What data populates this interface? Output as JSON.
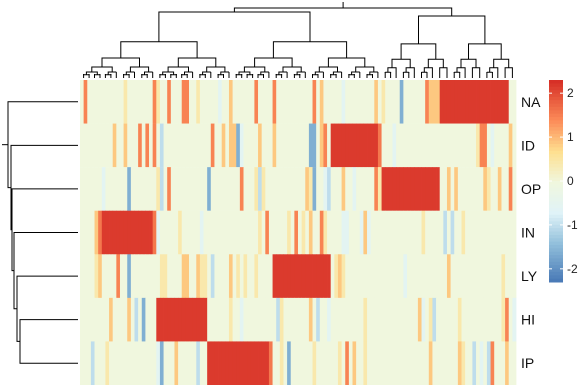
{
  "chart_data": {
    "type": "heatmap",
    "title": "",
    "xlabel": "",
    "ylabel": "",
    "rows": [
      "NA",
      "ID",
      "OP",
      "IN",
      "LY",
      "HI",
      "IP"
    ],
    "num_columns": 120,
    "row_blocks": {
      "NA": [
        99,
        117
      ],
      "ID": [
        69,
        82
      ],
      "OP": [
        83,
        98
      ],
      "IN": [
        5,
        20
      ],
      "LY": [
        53,
        68
      ],
      "HI": [
        21,
        34
      ],
      "IP": [
        35,
        52
      ]
    },
    "high_value": 2.2,
    "baseline_value": 0,
    "color_scale": {
      "domain": [
        -2.3,
        -1.4,
        -0.7,
        0,
        0.7,
        1.4,
        2.3
      ],
      "colors": [
        "#4575b4",
        "#91bfdb",
        "#e0f3f8",
        "#f0f7de",
        "#fee090",
        "#fc8d59",
        "#d73027"
      ],
      "ticks": [
        2,
        1,
        0,
        -1,
        -2
      ],
      "legend_position": "right"
    },
    "dendrogram_row": true,
    "dendrogram_col": true
  }
}
